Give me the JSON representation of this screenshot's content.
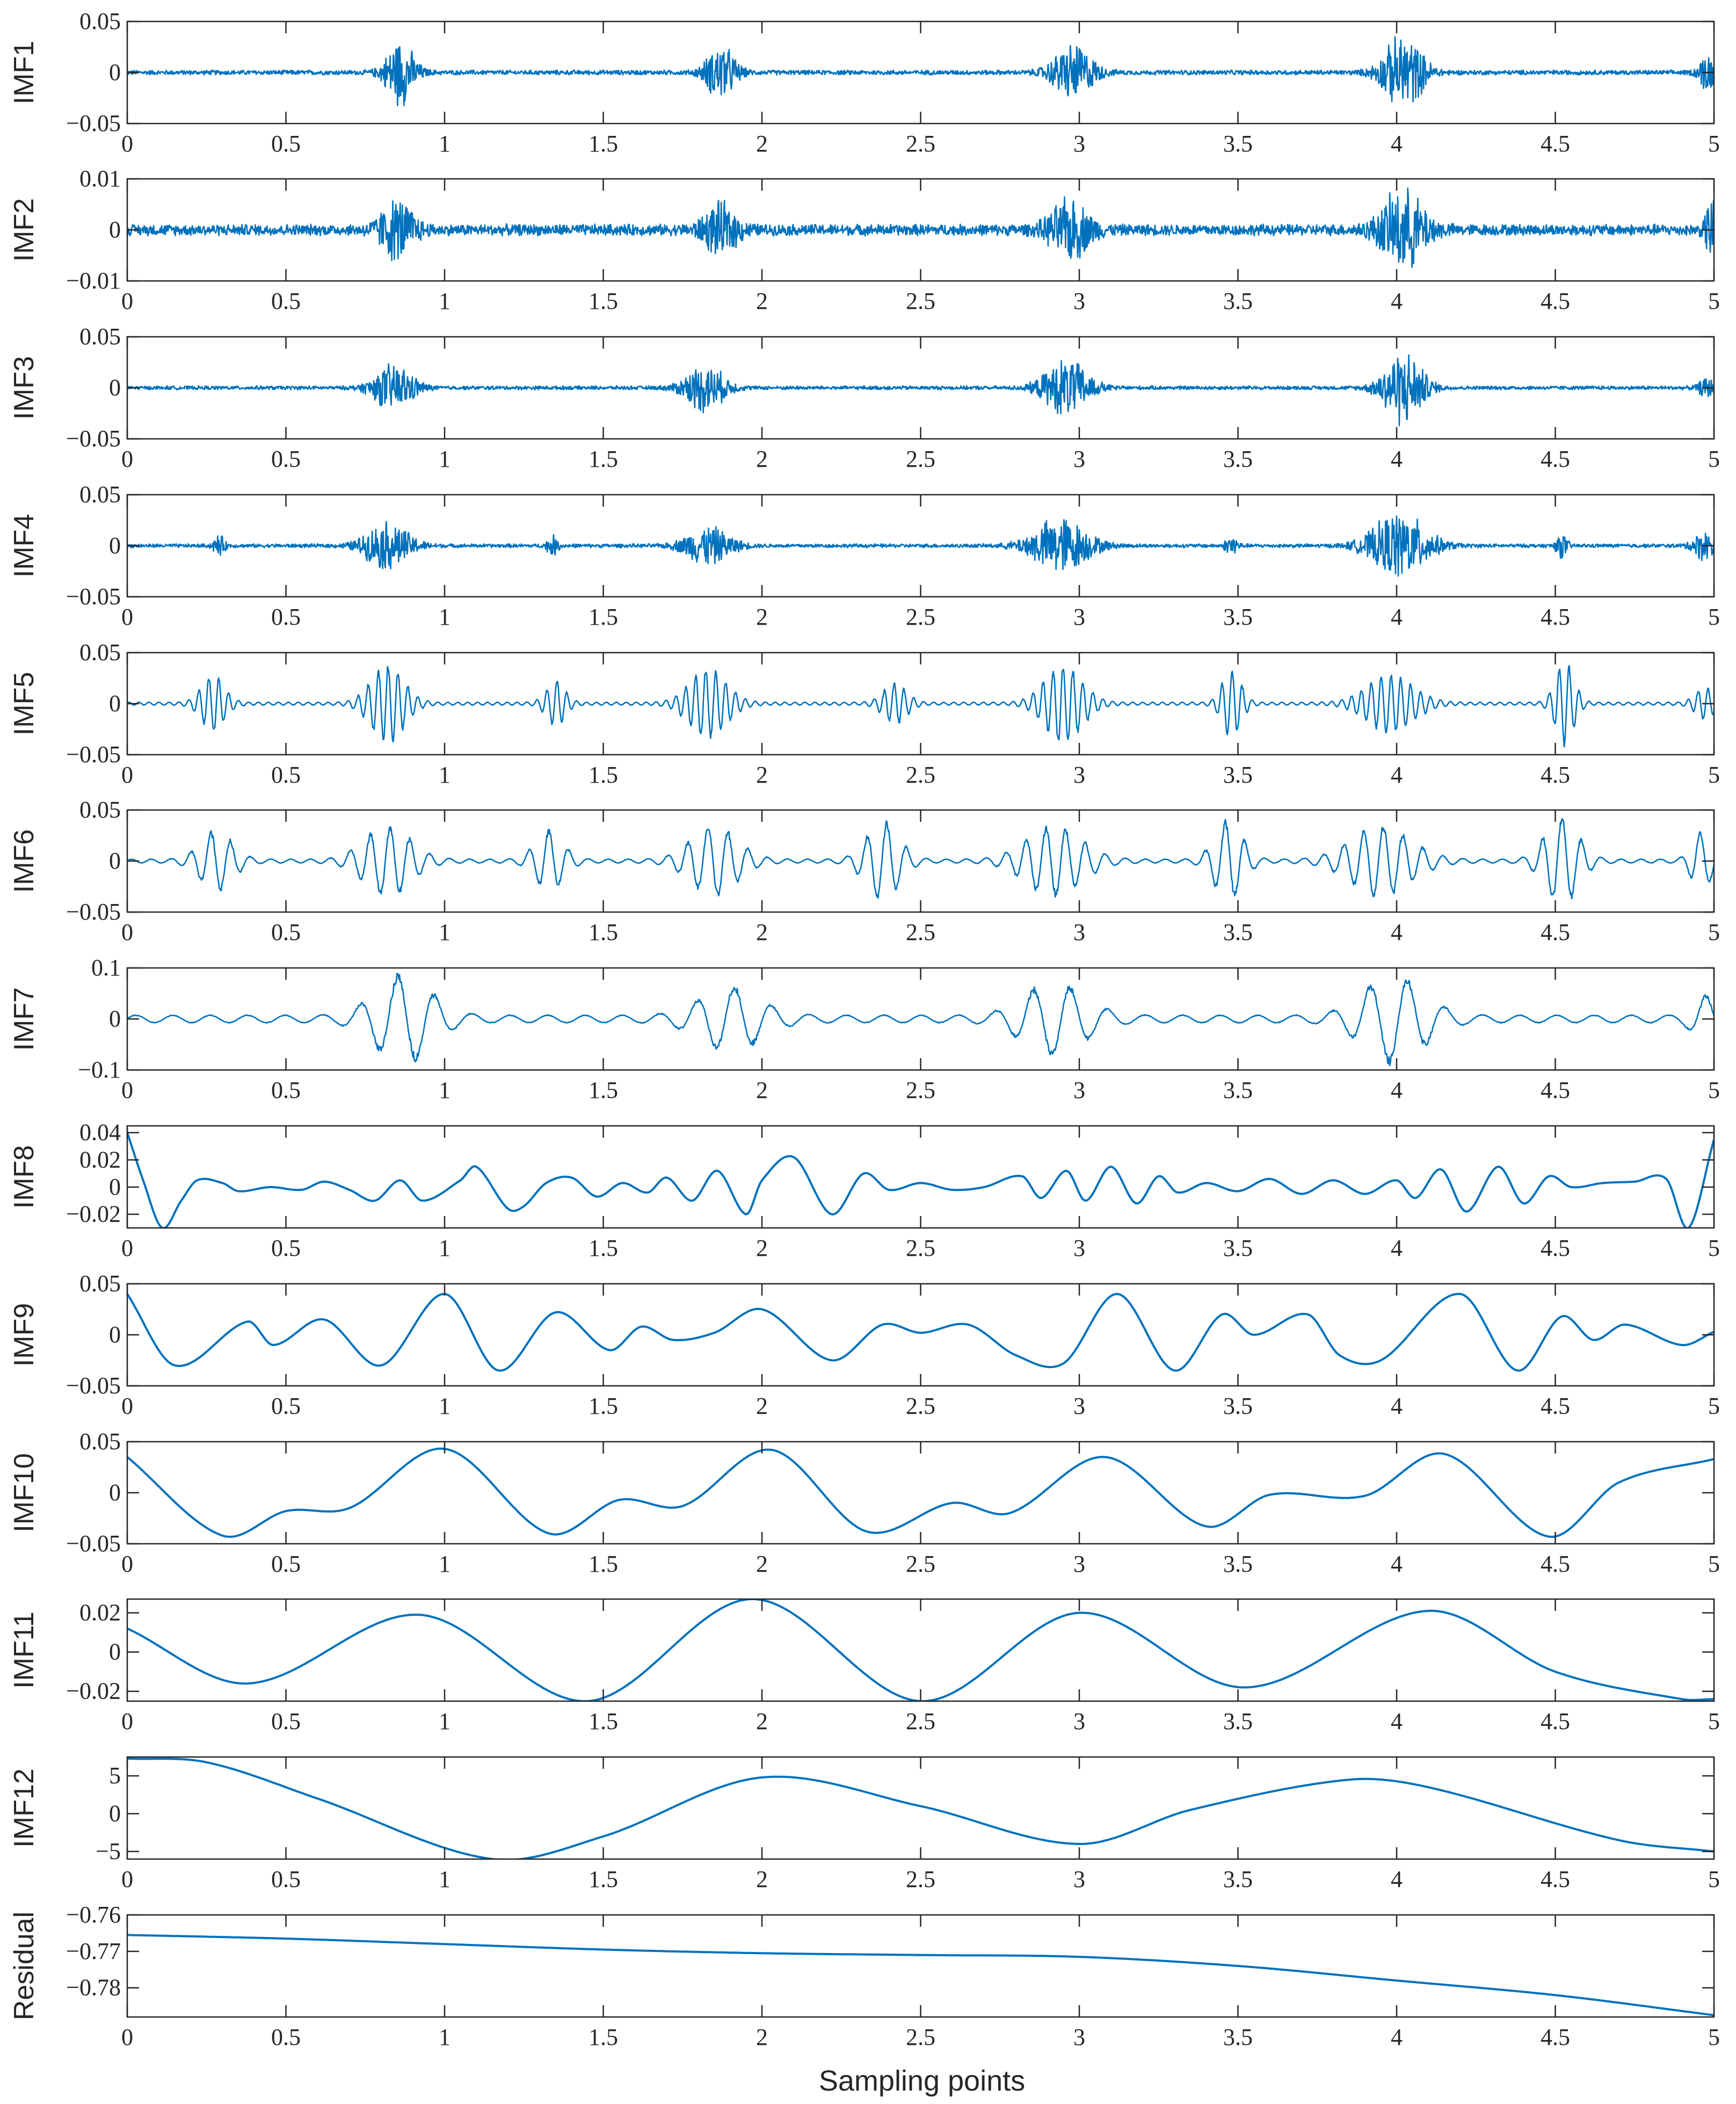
{
  "chart_data": {
    "type": "line",
    "title": "",
    "xlabel": "Sampling points",
    "line_color": "#0072BD",
    "x_ticks": [
      "0",
      "0.5",
      "1",
      "1.5",
      "2",
      "2.5",
      "3",
      "3.5",
      "4",
      "4.5",
      "5"
    ],
    "xlim": [
      0,
      5
    ],
    "panels": [
      {
        "name": "IMF1",
        "ylabel": "IMF1",
        "ylim": [
          -0.05,
          0.05
        ],
        "y_ticks": [
          0.05,
          0,
          -0.05
        ],
        "y_tick_labels": [
          "0.05",
          "0",
          "−0.05"
        ],
        "kind": "noise",
        "base": 0.0025,
        "freq": 160,
        "bursts": [
          [
            0.86,
            0.05,
            0.035
          ],
          [
            1.87,
            0.05,
            0.03
          ],
          [
            2.98,
            0.07,
            0.03
          ],
          [
            4.02,
            0.07,
            0.04
          ],
          [
            4.98,
            0.03,
            0.02
          ]
        ]
      },
      {
        "name": "IMF2",
        "ylabel": "IMF2",
        "ylim": [
          -0.01,
          0.01
        ],
        "y_ticks": [
          0.01,
          0,
          -0.01
        ],
        "y_tick_labels": [
          "0.01",
          "0",
          "−0.01"
        ],
        "kind": "noise",
        "base": 0.0012,
        "freq": 150,
        "bursts": [
          [
            0.85,
            0.06,
            0.006
          ],
          [
            1.87,
            0.06,
            0.005
          ],
          [
            2.97,
            0.07,
            0.006
          ],
          [
            4.02,
            0.08,
            0.008
          ],
          [
            4.99,
            0.02,
            0.006
          ]
        ]
      },
      {
        "name": "IMF3",
        "ylabel": "IMF3",
        "ylim": [
          -0.05,
          0.05
        ],
        "y_ticks": [
          0.05,
          0,
          -0.05
        ],
        "y_tick_labels": [
          "0.05",
          "0",
          "−0.05"
        ],
        "kind": "noise",
        "base": 0.002,
        "freq": 130,
        "bursts": [
          [
            0.84,
            0.07,
            0.025
          ],
          [
            1.82,
            0.07,
            0.025
          ],
          [
            2.96,
            0.08,
            0.03
          ],
          [
            4.02,
            0.07,
            0.04
          ],
          [
            4.98,
            0.03,
            0.01
          ]
        ]
      },
      {
        "name": "IMF4",
        "ylabel": "IMF4",
        "ylim": [
          -0.05,
          0.05
        ],
        "y_ticks": [
          0.05,
          0,
          -0.05
        ],
        "y_tick_labels": [
          "0.05",
          "0",
          "−0.05"
        ],
        "kind": "noise",
        "base": 0.002,
        "freq": 100,
        "bursts": [
          [
            0.29,
            0.02,
            0.01
          ],
          [
            0.82,
            0.08,
            0.025
          ],
          [
            1.34,
            0.02,
            0.01
          ],
          [
            1.83,
            0.08,
            0.02
          ],
          [
            2.94,
            0.1,
            0.03
          ],
          [
            3.48,
            0.02,
            0.012
          ],
          [
            4.01,
            0.1,
            0.035
          ],
          [
            4.52,
            0.02,
            0.012
          ],
          [
            4.97,
            0.04,
            0.015
          ]
        ]
      },
      {
        "name": "IMF5",
        "ylabel": "IMF5",
        "ylim": [
          -0.05,
          0.05
        ],
        "y_ticks": [
          0.05,
          0,
          -0.05
        ],
        "y_tick_labels": [
          "0.05",
          "0",
          "−0.05"
        ],
        "kind": "osc",
        "base": 0.0015,
        "freq": 32,
        "bursts": [
          [
            0.27,
            0.05,
            0.028
          ],
          [
            0.82,
            0.07,
            0.04
          ],
          [
            1.35,
            0.04,
            0.022
          ],
          [
            1.83,
            0.08,
            0.035
          ],
          [
            2.42,
            0.05,
            0.02
          ],
          [
            2.95,
            0.08,
            0.04
          ],
          [
            3.48,
            0.04,
            0.035
          ],
          [
            3.98,
            0.1,
            0.03
          ],
          [
            4.53,
            0.04,
            0.042
          ],
          [
            4.97,
            0.04,
            0.015
          ]
        ]
      },
      {
        "name": "IMF6",
        "ylabel": "IMF6",
        "ylim": [
          -0.05,
          0.05
        ],
        "y_ticks": [
          0.05,
          0,
          -0.05
        ],
        "y_tick_labels": [
          "0.05",
          "0",
          "−0.05"
        ],
        "kind": "osc",
        "base": 0.002,
        "freq": 16,
        "bursts": [
          [
            0.28,
            0.07,
            0.03
          ],
          [
            0.82,
            0.1,
            0.035
          ],
          [
            1.33,
            0.06,
            0.03
          ],
          [
            1.85,
            0.1,
            0.035
          ],
          [
            2.38,
            0.07,
            0.04
          ],
          [
            2.92,
            0.12,
            0.035
          ],
          [
            3.47,
            0.06,
            0.04
          ],
          [
            3.95,
            0.13,
            0.035
          ],
          [
            4.52,
            0.07,
            0.045
          ],
          [
            4.96,
            0.04,
            0.03
          ]
        ]
      },
      {
        "name": "IMF7",
        "ylabel": "IMF7",
        "ylim": [
          -0.1,
          0.1
        ],
        "y_ticks": [
          0.1,
          0,
          -0.1
        ],
        "y_tick_labels": [
          "0.1",
          "0",
          "−0.1"
        ],
        "kind": "osc",
        "base": 0.008,
        "freq": 8.5,
        "bursts": [
          [
            0.87,
            0.12,
            0.085
          ],
          [
            1.9,
            0.13,
            0.06
          ],
          [
            2.92,
            0.13,
            0.07
          ],
          [
            3.99,
            0.13,
            0.085
          ],
          [
            4.97,
            0.05,
            0.04
          ]
        ]
      },
      {
        "name": "IMF8",
        "ylabel": "IMF8",
        "ylim": [
          -0.03,
          0.045
        ],
        "y_ticks": [
          0.04,
          0.02,
          0,
          -0.02
        ],
        "y_tick_labels": [
          "0.04",
          "0.02",
          "0",
          "−0.02"
        ],
        "kind": "smooth",
        "points": [
          [
            0,
            0.04
          ],
          [
            0.05,
            0.005
          ],
          [
            0.11,
            -0.03
          ],
          [
            0.17,
            -0.01
          ],
          [
            0.22,
            0.005
          ],
          [
            0.3,
            0.003
          ],
          [
            0.35,
            -0.003
          ],
          [
            0.45,
            0
          ],
          [
            0.55,
            -0.002
          ],
          [
            0.62,
            0.004
          ],
          [
            0.7,
            -0.002
          ],
          [
            0.78,
            -0.01
          ],
          [
            0.86,
            0.005
          ],
          [
            0.93,
            -0.01
          ],
          [
            1.05,
            0.005
          ],
          [
            1.1,
            0.015
          ],
          [
            1.2,
            -0.016
          ],
          [
            1.25,
            -0.014
          ],
          [
            1.32,
            0.003
          ],
          [
            1.4,
            0.007
          ],
          [
            1.48,
            -0.007
          ],
          [
            1.56,
            0.003
          ],
          [
            1.64,
            -0.004
          ],
          [
            1.7,
            0.007
          ],
          [
            1.78,
            -0.01
          ],
          [
            1.86,
            0.012
          ],
          [
            1.95,
            -0.02
          ],
          [
            2.0,
            0.005
          ],
          [
            2.1,
            0.022
          ],
          [
            2.22,
            -0.02
          ],
          [
            2.32,
            0.01
          ],
          [
            2.4,
            -0.002
          ],
          [
            2.5,
            0.003
          ],
          [
            2.6,
            -0.002
          ],
          [
            2.7,
            0
          ],
          [
            2.82,
            0.008
          ],
          [
            2.88,
            -0.008
          ],
          [
            2.96,
            0.012
          ],
          [
            3.02,
            -0.01
          ],
          [
            3.1,
            0.015
          ],
          [
            3.18,
            -0.012
          ],
          [
            3.25,
            0.008
          ],
          [
            3.31,
            -0.004
          ],
          [
            3.4,
            0.003
          ],
          [
            3.5,
            -0.003
          ],
          [
            3.6,
            0.006
          ],
          [
            3.7,
            -0.005
          ],
          [
            3.8,
            0.005
          ],
          [
            3.9,
            -0.005
          ],
          [
            4.0,
            0.005
          ],
          [
            4.06,
            -0.008
          ],
          [
            4.14,
            0.013
          ],
          [
            4.22,
            -0.018
          ],
          [
            4.32,
            0.015
          ],
          [
            4.4,
            -0.012
          ],
          [
            4.48,
            0.008
          ],
          [
            4.55,
            0
          ],
          [
            4.65,
            0.003
          ],
          [
            4.75,
            0.004
          ],
          [
            4.85,
            0.006
          ],
          [
            4.92,
            -0.03
          ],
          [
            5.0,
            0.035
          ]
        ]
      },
      {
        "name": "IMF9",
        "ylabel": "IMF9",
        "ylim": [
          -0.05,
          0.05
        ],
        "y_ticks": [
          0.05,
          0,
          -0.05
        ],
        "y_tick_labels": [
          "0.05",
          "0",
          "−0.05"
        ],
        "kind": "smooth",
        "points": [
          [
            0,
            0.04
          ],
          [
            0.15,
            -0.03
          ],
          [
            0.38,
            0.013
          ],
          [
            0.46,
            -0.01
          ],
          [
            0.62,
            0.015
          ],
          [
            0.8,
            -0.03
          ],
          [
            1.0,
            0.04
          ],
          [
            1.17,
            -0.035
          ],
          [
            1.35,
            0.022
          ],
          [
            1.52,
            -0.015
          ],
          [
            1.62,
            0.008
          ],
          [
            1.72,
            -0.005
          ],
          [
            1.85,
            0.002
          ],
          [
            2.0,
            0.025
          ],
          [
            2.22,
            -0.025
          ],
          [
            2.38,
            0.01
          ],
          [
            2.5,
            0.002
          ],
          [
            2.65,
            0.01
          ],
          [
            2.8,
            -0.02
          ],
          [
            2.95,
            -0.028
          ],
          [
            3.12,
            0.04
          ],
          [
            3.3,
            -0.035
          ],
          [
            3.45,
            0.02
          ],
          [
            3.55,
            0
          ],
          [
            3.72,
            0.02
          ],
          [
            3.82,
            -0.02
          ],
          [
            3.95,
            -0.025
          ],
          [
            4.2,
            0.04
          ],
          [
            4.38,
            -0.035
          ],
          [
            4.52,
            0.018
          ],
          [
            4.62,
            -0.005
          ],
          [
            4.72,
            0.01
          ],
          [
            4.9,
            -0.01
          ],
          [
            5.0,
            0.003
          ]
        ]
      },
      {
        "name": "IMF10",
        "ylabel": "IMF10",
        "ylim": [
          -0.05,
          0.05
        ],
        "y_ticks": [
          0.05,
          0,
          -0.05
        ],
        "y_tick_labels": [
          "0.05",
          "0",
          "−0.05"
        ],
        "kind": "smooth",
        "points": [
          [
            0,
            0.035
          ],
          [
            0.3,
            -0.042
          ],
          [
            0.5,
            -0.018
          ],
          [
            0.7,
            -0.015
          ],
          [
            1.0,
            0.043
          ],
          [
            1.33,
            -0.04
          ],
          [
            1.55,
            -0.007
          ],
          [
            1.75,
            -0.013
          ],
          [
            2.03,
            0.042
          ],
          [
            2.33,
            -0.038
          ],
          [
            2.6,
            -0.01
          ],
          [
            2.78,
            -0.02
          ],
          [
            3.08,
            0.035
          ],
          [
            3.4,
            -0.033
          ],
          [
            3.6,
            -0.002
          ],
          [
            3.9,
            -0.003
          ],
          [
            4.15,
            0.038
          ],
          [
            4.48,
            -0.043
          ],
          [
            4.7,
            0.01
          ],
          [
            5.0,
            0.033
          ]
        ]
      },
      {
        "name": "IMF11",
        "ylabel": "IMF11",
        "ylim": [
          -0.025,
          0.027
        ],
        "y_ticks": [
          0.02,
          0,
          -0.02
        ],
        "y_tick_labels": [
          "0.02",
          "0",
          "−0.02"
        ],
        "kind": "smooth",
        "points": [
          [
            0,
            0.012
          ],
          [
            0.38,
            -0.016
          ],
          [
            0.92,
            0.019
          ],
          [
            1.45,
            -0.025
          ],
          [
            1.97,
            0.027
          ],
          [
            2.5,
            -0.025
          ],
          [
            3.0,
            0.02
          ],
          [
            3.52,
            -0.018
          ],
          [
            4.1,
            0.021
          ],
          [
            4.5,
            -0.01
          ],
          [
            4.9,
            -0.024
          ],
          [
            5.0,
            -0.024
          ]
        ]
      },
      {
        "name": "IMF12",
        "ylabel": "IMF12",
        "ylim": [
          -6,
          7.5
        ],
        "y_ticks": [
          5,
          0,
          -5
        ],
        "y_tick_labels": [
          "5",
          "0",
          "−5"
        ],
        "kind": "smooth",
        "points": [
          [
            0,
            7.3
          ],
          [
            0.25,
            6.8
          ],
          [
            0.6,
            2
          ],
          [
            1.15,
            -6
          ],
          [
            1.5,
            -3
          ],
          [
            2.0,
            4.8
          ],
          [
            2.5,
            1
          ],
          [
            3.0,
            -4
          ],
          [
            3.35,
            0.5
          ],
          [
            3.85,
            4.5
          ],
          [
            4.1,
            3.5
          ],
          [
            4.7,
            -3.5
          ],
          [
            5.0,
            -5
          ]
        ]
      },
      {
        "name": "Residual",
        "ylabel": "Residual",
        "ylim": [
          -0.788,
          -0.76
        ],
        "y_ticks": [
          -0.76,
          -0.77,
          -0.78
        ],
        "y_tick_labels": [
          "−0.76",
          "−0.77",
          "−0.78"
        ],
        "kind": "smooth",
        "points": [
          [
            0,
            -0.7655
          ],
          [
            0.5,
            -0.7665
          ],
          [
            1.0,
            -0.768
          ],
          [
            1.5,
            -0.7695
          ],
          [
            2.0,
            -0.7705
          ],
          [
            2.5,
            -0.771
          ],
          [
            3.0,
            -0.7715
          ],
          [
            3.5,
            -0.774
          ],
          [
            4.0,
            -0.778
          ],
          [
            4.5,
            -0.782
          ],
          [
            5.0,
            -0.7875
          ]
        ]
      }
    ]
  }
}
